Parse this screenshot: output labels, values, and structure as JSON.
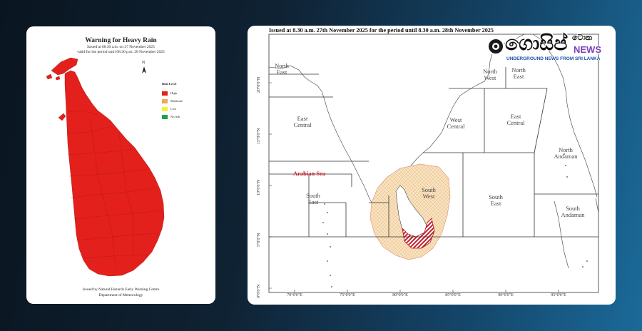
{
  "left_map": {
    "title": "Warning  for Heavy Rain",
    "issued": "Issued at 08.30 a.m. on 27 November 2025",
    "valid": "valid for the period until 08.30 p.m. 28 November 2025",
    "north_label": "N",
    "legend": {
      "title": "Risk Level",
      "items": [
        {
          "label": "High",
          "color": "#e3201b"
        },
        {
          "label": "Moderate",
          "color": "#f4a460"
        },
        {
          "label": "Low",
          "color": "#f7f03a"
        },
        {
          "label": "No risk",
          "color": "#1aa34a"
        }
      ]
    },
    "footer_1": "Issued by Natural Hazards Early Warning Centre",
    "footer_2": "Department of Meteorology",
    "fill_color": "#e3201b"
  },
  "right_map": {
    "header": "Issued at 8.30 a.m. 27th November 2025 for the period until 8.30 a.m. 28th November 2025",
    "sea_label": "Arabian Sea",
    "zones": {
      "north_east": "North East",
      "east_central": "East Central",
      "north_west": "North West",
      "north_east_2": "North East",
      "west_central": "West Central",
      "east_central_2": "East Central",
      "north_andaman": "North Andaman",
      "south_east": "South East",
      "south_west": "South West",
      "south_east_2": "South East",
      "south_andaman": "South Andaman"
    },
    "lat_labels": [
      "20°0'0\"N",
      "15°0'0\"N",
      "10°0'0\"N",
      "5°0'0\"N",
      "0°0'0\"N"
    ],
    "lon_labels": [
      "70°0'0\"E",
      "75°0'0\"E",
      "80°0'0\"E",
      "85°0'0\"E",
      "90°0'0\"E",
      "95°0'0\"E"
    ],
    "risk_color": "#c8202a",
    "hatch_color": "#f3d9b0"
  },
  "watermark": {
    "logo_text": "ගොසිප්",
    "logo_small": "ටොක",
    "news": "NEWS",
    "tagline": "UNDERGROUND NEWS FROM SRI LANKA"
  }
}
